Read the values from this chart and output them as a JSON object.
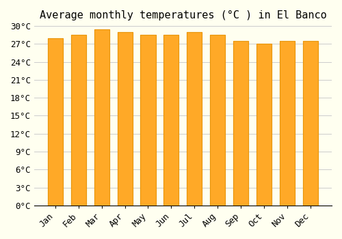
{
  "title": "Average monthly temperatures (°C ) in El Banco",
  "months": [
    "Jan",
    "Feb",
    "Mar",
    "Apr",
    "May",
    "Jun",
    "Jul",
    "Aug",
    "Sep",
    "Oct",
    "Nov",
    "Dec"
  ],
  "values": [
    28.0,
    28.5,
    29.5,
    29.0,
    28.5,
    28.5,
    29.0,
    28.5,
    27.5,
    27.0,
    27.5,
    27.5
  ],
  "ylim": [
    0,
    30
  ],
  "yticks": [
    0,
    3,
    6,
    9,
    12,
    15,
    18,
    21,
    24,
    27,
    30
  ],
  "bar_color_top": "#FFA500",
  "bar_color_bottom": "#FFD080",
  "bar_edge_color": "#E8940A",
  "background_color": "#FFFFF0",
  "grid_color": "#CCCCCC",
  "title_fontsize": 11,
  "tick_fontsize": 9
}
